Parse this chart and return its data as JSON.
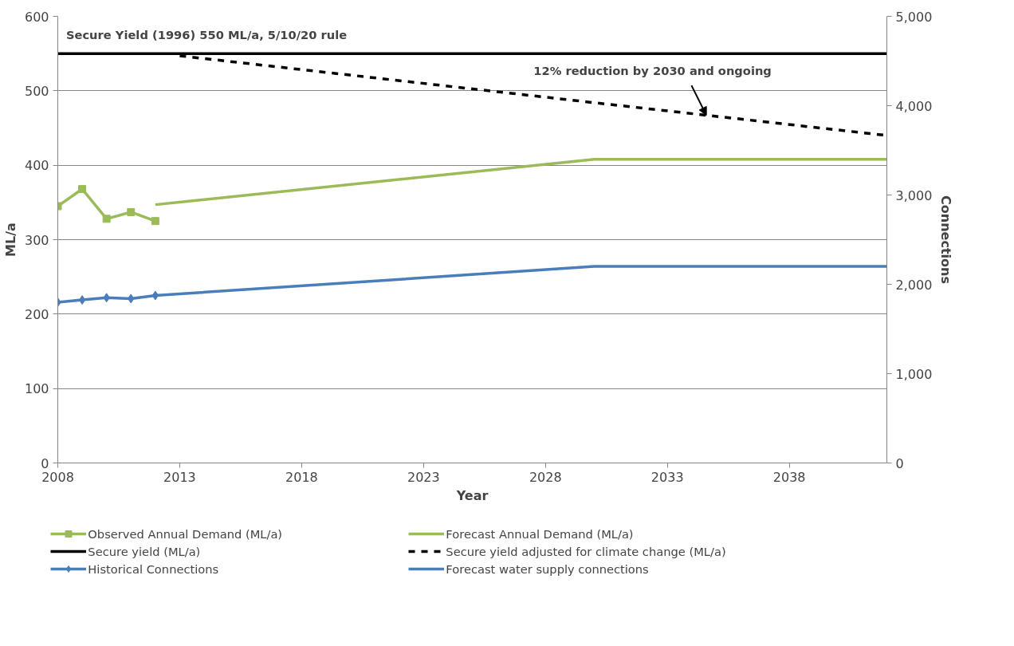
{
  "chart_data": {
    "type": "line",
    "xlabel": "Year",
    "ylabel": "ML/a",
    "y2label": "Connections",
    "xlim": [
      2008,
      2042
    ],
    "xticks": [
      2008,
      2013,
      2018,
      2023,
      2028,
      2033,
      2038
    ],
    "ylim": [
      0,
      600
    ],
    "yticks": [
      0,
      100,
      200,
      300,
      400,
      500,
      600
    ],
    "y2lim": [
      0,
      5000
    ],
    "y2ticks": [
      {
        "value": 0,
        "label": "0"
      },
      {
        "value": 1000,
        "label": "1,000"
      },
      {
        "value": 2000,
        "label": "2,000"
      },
      {
        "value": 3000,
        "label": "3,000"
      },
      {
        "value": 4000,
        "label": "4,000"
      },
      {
        "value": 5000,
        "label": "5,000"
      }
    ],
    "grid": "y",
    "legend": "bottom",
    "series": [
      {
        "name": "Observed Annual Demand (ML/a)",
        "color": "#9bbb59",
        "x": [
          2008,
          2009,
          2010,
          2011,
          2012
        ],
        "values": [
          345,
          368,
          328,
          337,
          325
        ],
        "marker": "square"
      },
      {
        "name": "Forecast Annual Demand (ML/a)",
        "color": "#9bbb59",
        "x": [
          2012,
          2030,
          2042
        ],
        "values": [
          347,
          408,
          408
        ]
      },
      {
        "name": "Secure yield (ML/a)",
        "color": "#000000",
        "x": [
          2008,
          2042
        ],
        "values": [
          550,
          550
        ]
      },
      {
        "name": "Secure yield adjusted for climate change (ML/a)",
        "color": "#000000",
        "x": [
          2013,
          2030,
          2042
        ],
        "values": [
          547,
          484,
          440
        ],
        "line_style": "dashed"
      },
      {
        "name": "Historical Connections",
        "color": "#4a7ebb",
        "x": [
          2008,
          2009,
          2010,
          2011,
          2012
        ],
        "values": [
          1800,
          1825,
          1850,
          1840,
          1875
        ],
        "marker": "diamond",
        "axis": "y2"
      },
      {
        "name": "Forecast water supply connections",
        "color": "#4a7ebb",
        "x": [
          2012,
          2030,
          2042
        ],
        "values": [
          1875,
          2200,
          2200
        ],
        "axis": "y2"
      }
    ],
    "annotations": [
      "Secure Yield (1996) 550 ML/a, 5/10/20 rule",
      {
        "text": "12% reduction by 2030 and ongoing",
        "x": 2034.6,
        "y": 467
      }
    ]
  }
}
